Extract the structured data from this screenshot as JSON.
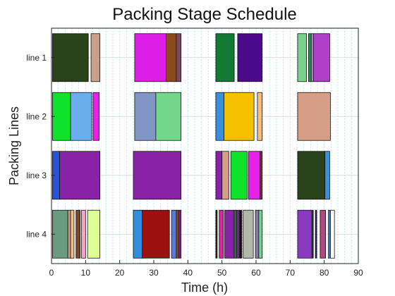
{
  "chart_data": {
    "type": "bar",
    "subtype": "gantt",
    "title": "Packing Stage Schedule",
    "xlabel": "Time (h)",
    "ylabel": "Packing Lines",
    "xlim": [
      0,
      90
    ],
    "xticks": [
      0,
      10,
      20,
      30,
      40,
      50,
      60,
      70,
      80,
      90
    ],
    "grid": "dashed vertical every 2 h, solid horizontal at line centers",
    "lines": [
      "line 1",
      "line 2",
      "line 3",
      "line 4"
    ],
    "tasks": [
      {
        "line": 0,
        "start": 0.3,
        "end": 10.8,
        "color": "#2a431a"
      },
      {
        "line": 0,
        "start": 11.6,
        "end": 14.2,
        "color": "#c9a08c"
      },
      {
        "line": 0,
        "start": 24.4,
        "end": 33.6,
        "color": "#dc1ee6"
      },
      {
        "line": 0,
        "start": 33.6,
        "end": 36.6,
        "color": "#8a4a1c"
      },
      {
        "line": 0,
        "start": 36.6,
        "end": 38.0,
        "color": "#7b4a62"
      },
      {
        "line": 0,
        "start": 48.2,
        "end": 53.6,
        "color": "#137a34"
      },
      {
        "line": 0,
        "start": 54.6,
        "end": 61.8,
        "color": "#4a0a8a"
      },
      {
        "line": 0,
        "start": 72.2,
        "end": 74.8,
        "color": "#78d28a"
      },
      {
        "line": 0,
        "start": 75.4,
        "end": 76.2,
        "color": "#2e8b57"
      },
      {
        "line": 0,
        "start": 76.2,
        "end": 76.8,
        "color": "#c8a0d8"
      },
      {
        "line": 0,
        "start": 76.8,
        "end": 81.6,
        "color": "#b040c8"
      },
      {
        "line": 1,
        "start": 0.3,
        "end": 5.6,
        "color": "#0ee22a"
      },
      {
        "line": 1,
        "start": 5.6,
        "end": 11.8,
        "color": "#6aaeee"
      },
      {
        "line": 1,
        "start": 12.2,
        "end": 14.0,
        "color": "#e820e8"
      },
      {
        "line": 1,
        "start": 24.4,
        "end": 30.6,
        "color": "#8296c6"
      },
      {
        "line": 1,
        "start": 30.6,
        "end": 38.0,
        "color": "#74d68a"
      },
      {
        "line": 1,
        "start": 48.2,
        "end": 50.6,
        "color": "#3a90dc"
      },
      {
        "line": 1,
        "start": 50.6,
        "end": 59.4,
        "color": "#f4c000"
      },
      {
        "line": 1,
        "start": 60.4,
        "end": 61.8,
        "color": "#f4c080"
      },
      {
        "line": 1,
        "start": 72.2,
        "end": 81.8,
        "color": "#d69e86"
      },
      {
        "line": 2,
        "start": 0.3,
        "end": 2.4,
        "color": "#2a52d8"
      },
      {
        "line": 2,
        "start": 2.4,
        "end": 14.2,
        "color": "#8a22a8"
      },
      {
        "line": 2,
        "start": 24.0,
        "end": 38.0,
        "color": "#8a22a8"
      },
      {
        "line": 2,
        "start": 48.2,
        "end": 50.0,
        "color": "#8a22a8"
      },
      {
        "line": 2,
        "start": 50.0,
        "end": 52.0,
        "color": "#d69e86"
      },
      {
        "line": 2,
        "start": 52.6,
        "end": 57.4,
        "color": "#0ee22a"
      },
      {
        "line": 2,
        "start": 57.8,
        "end": 61.2,
        "color": "#e820e8"
      },
      {
        "line": 2,
        "start": 61.2,
        "end": 61.8,
        "color": "#6e3c1c"
      },
      {
        "line": 2,
        "start": 72.2,
        "end": 80.2,
        "color": "#2a431a"
      },
      {
        "line": 2,
        "start": 80.2,
        "end": 81.6,
        "color": "#3a90dc"
      },
      {
        "line": 3,
        "start": 0.3,
        "end": 4.8,
        "color": "#6a9a80"
      },
      {
        "line": 3,
        "start": 4.8,
        "end": 5.6,
        "color": "#c9a08c"
      },
      {
        "line": 3,
        "start": 5.6,
        "end": 6.6,
        "color": "#f4c080"
      },
      {
        "line": 3,
        "start": 7.2,
        "end": 8.4,
        "color": "#7a4a2a"
      },
      {
        "line": 3,
        "start": 8.8,
        "end": 10.0,
        "color": "#f0a8c8"
      },
      {
        "line": 3,
        "start": 10.6,
        "end": 14.2,
        "color": "#deff96"
      },
      {
        "line": 3,
        "start": 24.0,
        "end": 26.6,
        "color": "#2e8fe0"
      },
      {
        "line": 3,
        "start": 26.6,
        "end": 34.6,
        "color": "#9c1010"
      },
      {
        "line": 3,
        "start": 35.2,
        "end": 36.6,
        "color": "#5a7ad8"
      },
      {
        "line": 3,
        "start": 36.6,
        "end": 37.4,
        "color": "#7a4a2a"
      },
      {
        "line": 3,
        "start": 37.4,
        "end": 38.0,
        "color": "#8a22a8"
      },
      {
        "line": 3,
        "start": 48.2,
        "end": 48.6,
        "color": "#222222"
      },
      {
        "line": 3,
        "start": 49.2,
        "end": 50.4,
        "color": "#e820a8"
      },
      {
        "line": 3,
        "start": 50.8,
        "end": 53.6,
        "color": "#8a22a8"
      },
      {
        "line": 3,
        "start": 53.6,
        "end": 54.2,
        "color": "#2e8b3a"
      },
      {
        "line": 3,
        "start": 54.2,
        "end": 55.2,
        "color": "#6a2a7a"
      },
      {
        "line": 3,
        "start": 55.2,
        "end": 55.8,
        "color": "#111111"
      },
      {
        "line": 3,
        "start": 56.2,
        "end": 59.2,
        "color": "#b0b8a8"
      },
      {
        "line": 3,
        "start": 59.8,
        "end": 60.8,
        "color": "#8a7aa8"
      },
      {
        "line": 3,
        "start": 60.8,
        "end": 61.8,
        "color": "#74d68a"
      },
      {
        "line": 3,
        "start": 72.2,
        "end": 76.4,
        "color": "#8a3ac0"
      },
      {
        "line": 3,
        "start": 76.4,
        "end": 76.8,
        "color": "#2a431a"
      },
      {
        "line": 3,
        "start": 77.4,
        "end": 77.8,
        "color": "#2a2a8a"
      },
      {
        "line": 3,
        "start": 78.8,
        "end": 80.4,
        "color": "#b04a7a"
      },
      {
        "line": 3,
        "start": 81.2,
        "end": 81.6,
        "color": "#6aaeee"
      },
      {
        "line": 3,
        "start": 81.8,
        "end": 83.0,
        "color": "#ffffff"
      }
    ]
  }
}
